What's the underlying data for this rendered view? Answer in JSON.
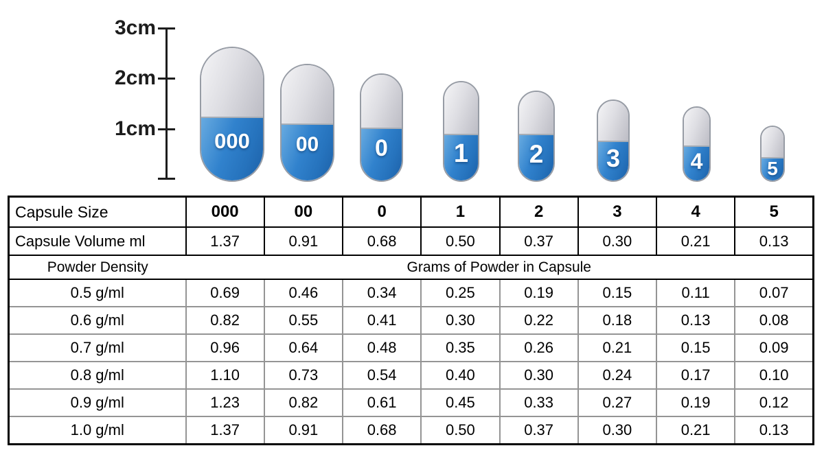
{
  "diagram": {
    "ruler_labels": [
      "3cm",
      "2cm",
      "1cm"
    ],
    "capsules": [
      "000",
      "00",
      "0",
      "1",
      "2",
      "3",
      "4",
      "5"
    ]
  },
  "table": {
    "size_row": {
      "header": "Capsule Size",
      "values": [
        "000",
        "00",
        "0",
        "1",
        "2",
        "3",
        "4",
        "5"
      ]
    },
    "volume_row": {
      "header": "Capsule Volume ml",
      "values": [
        "1.37",
        "0.91",
        "0.68",
        "0.50",
        "0.37",
        "0.30",
        "0.21",
        "0.13"
      ]
    },
    "density_header": {
      "left": "Powder Density",
      "right": "Grams of Powder in Capsule"
    },
    "density_rows": [
      {
        "density": "0.5 g/ml",
        "values": [
          "0.69",
          "0.46",
          "0.34",
          "0.25",
          "0.19",
          "0.15",
          "0.11",
          "0.07"
        ]
      },
      {
        "density": "0.6 g/ml",
        "values": [
          "0.82",
          "0.55",
          "0.41",
          "0.30",
          "0.22",
          "0.18",
          "0.13",
          "0.08"
        ]
      },
      {
        "density": "0.7 g/ml",
        "values": [
          "0.96",
          "0.64",
          "0.48",
          "0.35",
          "0.26",
          "0.21",
          "0.15",
          "0.09"
        ]
      },
      {
        "density": "0.8 g/ml",
        "values": [
          "1.10",
          "0.73",
          "0.54",
          "0.40",
          "0.30",
          "0.24",
          "0.17",
          "0.10"
        ]
      },
      {
        "density": "0.9 g/ml",
        "values": [
          "1.23",
          "0.82",
          "0.61",
          "0.45",
          "0.33",
          "0.27",
          "0.19",
          "0.12"
        ]
      },
      {
        "density": "1.0 g/ml",
        "values": [
          "1.37",
          "0.91",
          "0.68",
          "0.50",
          "0.37",
          "0.30",
          "0.21",
          "0.13"
        ]
      }
    ]
  },
  "colors": {
    "capsule_blue": "#3182cd",
    "capsule_blue_dark": "#1d61a8",
    "capsule_cap_gray": "#dedee3",
    "capsule_outline": "#979ca5",
    "table_outer_border": "#000000",
    "table_inner_border": "#949494"
  }
}
